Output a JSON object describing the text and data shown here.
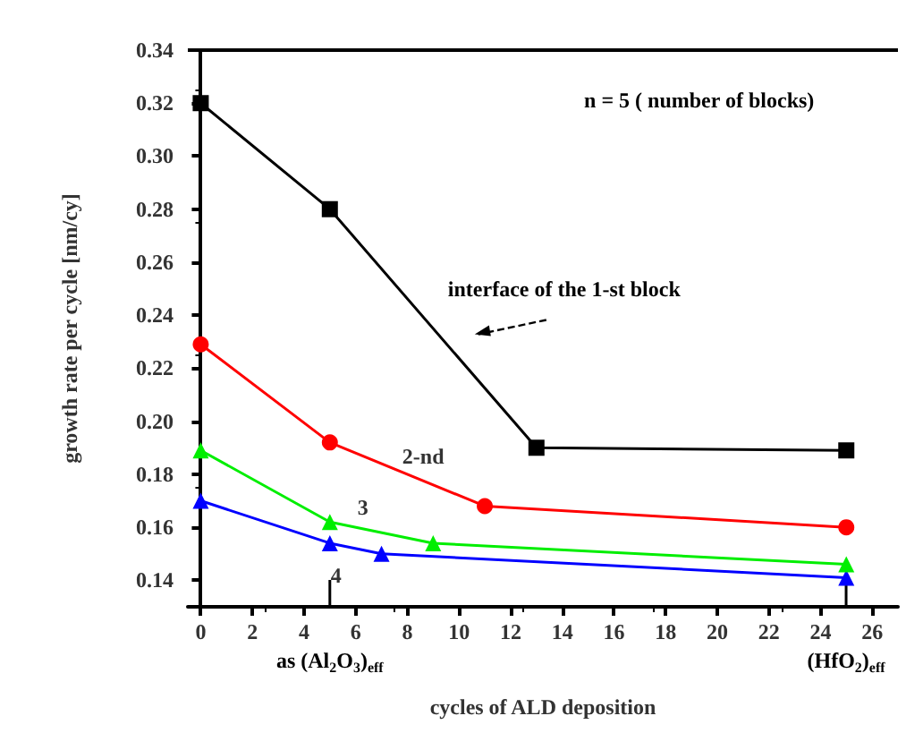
{
  "chart_data": {
    "type": "line",
    "xlabel": "cycles of ALD deposition",
    "ylabel": "growth rate per cycle [nm/cy]",
    "xlim": [
      -0.5,
      27
    ],
    "xticks": [
      0,
      2,
      4,
      6,
      8,
      10,
      12,
      14,
      16,
      18,
      20,
      22,
      24,
      26
    ],
    "ylim": [
      0.13,
      0.34
    ],
    "yticks": [
      0.14,
      0.16,
      0.18,
      {
        "value": 0.2,
        "label": "0.20"
      },
      0.22,
      0.24,
      0.26,
      0.28,
      {
        "value": 0.3,
        "label": "0.30"
      },
      0.32,
      0.34
    ],
    "grid": false,
    "legend": false,
    "line_style": "solid",
    "series": [
      {
        "color": "#000000",
        "marker": "square",
        "x": [
          0,
          5,
          13,
          25
        ],
        "values": [
          0.32,
          0.28,
          0.19,
          0.189
        ]
      },
      {
        "name": "2-nd",
        "color": "#ff0000",
        "marker": "circle",
        "x": [
          0,
          5,
          11,
          25
        ],
        "values": [
          0.229,
          0.192,
          0.168,
          0.16
        ]
      },
      {
        "name": "3",
        "color": "#00ee00",
        "marker": "triangle",
        "x": [
          0,
          5,
          9,
          25
        ],
        "values": [
          0.189,
          0.162,
          0.154,
          0.146
        ]
      },
      {
        "name": "4",
        "color": "#0000ff",
        "marker": "triangle",
        "x": [
          0,
          5,
          7,
          25
        ],
        "values": [
          0.17,
          0.154,
          0.15,
          0.141
        ]
      }
    ],
    "annotations": [
      "n = 5 ( number of blocks)",
      "interface of the 1-st block",
      "as (Al$_{2}$O$_{3}$)$_{eff}$",
      "(HfO$_{2}$)$_{eff}$"
    ]
  }
}
